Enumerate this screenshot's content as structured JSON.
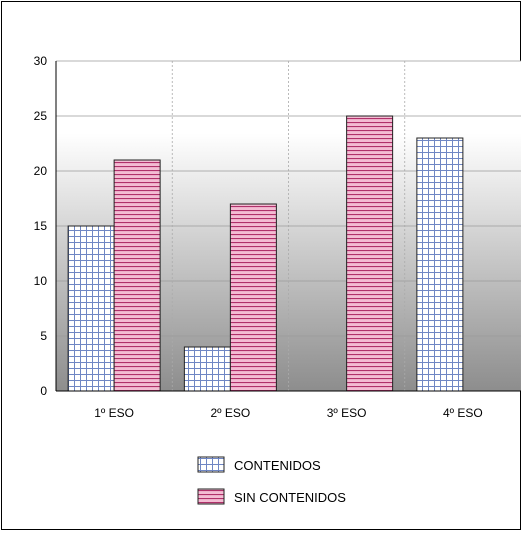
{
  "chart_data": {
    "type": "bar",
    "categories": [
      "1º ESO",
      "2º ESO",
      "3º ESO",
      "4º ESO"
    ],
    "series": [
      {
        "name": "CONTENIDOS",
        "values": [
          15,
          4,
          0,
          23
        ],
        "pattern": "grid"
      },
      {
        "name": "SIN CONTENIDOS",
        "values": [
          21,
          17,
          25,
          0
        ],
        "pattern": "stripes"
      }
    ],
    "yticks": [
      "0",
      "5",
      "10",
      "15",
      "20",
      "25",
      "30"
    ],
    "ylim": [
      0,
      30
    ],
    "legend_position": "bottom",
    "grid": true,
    "colors": {
      "grid_pattern_line": "#6f86c4",
      "grid_pattern_fill": "#ffffff",
      "stripe_line": "#b0306a",
      "stripe_fill": "#f3bcd3",
      "plot_top": "#ffffff",
      "plot_bottom": "#8d8d8d",
      "bar_border": "#222222"
    }
  }
}
